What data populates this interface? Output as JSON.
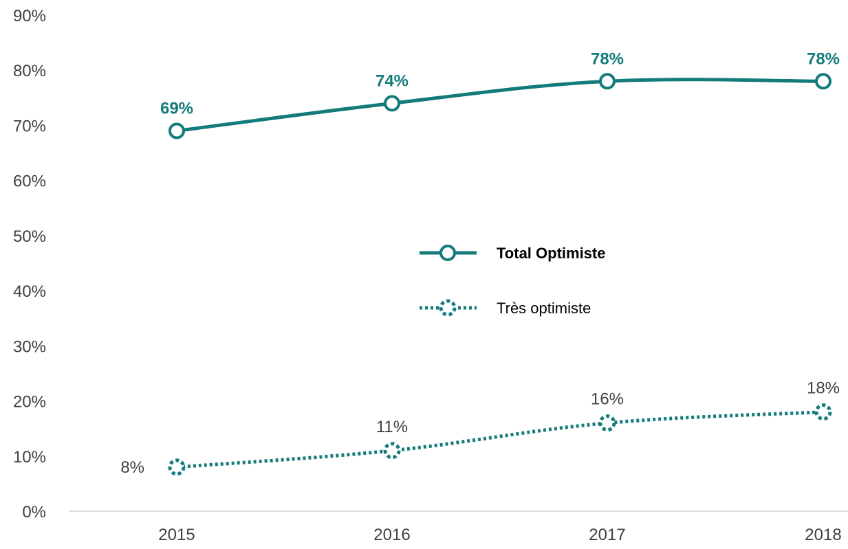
{
  "chart_data": {
    "type": "line",
    "title": "",
    "xlabel": "",
    "ylabel": "",
    "categories": [
      "2015",
      "2016",
      "2017",
      "2018"
    ],
    "y_ticks": [
      "0%",
      "10%",
      "20%",
      "30%",
      "40%",
      "50%",
      "60%",
      "70%",
      "80%",
      "90%"
    ],
    "ylim": [
      0,
      90
    ],
    "grid": false,
    "legend_position": "center",
    "series": [
      {
        "name": "Total Optimiste",
        "values": [
          69,
          74,
          78,
          78
        ],
        "labels": [
          "69%",
          "74%",
          "78%",
          "78%"
        ],
        "color": "#147b7b",
        "line_style": "solid",
        "marker": "circle"
      },
      {
        "name": "Très optimiste",
        "values": [
          8,
          11,
          16,
          18
        ],
        "labels": [
          "8%",
          "11%",
          "16%",
          "18%"
        ],
        "color": "#147b7b",
        "line_style": "dotted",
        "marker": "dotted-circle"
      }
    ]
  }
}
